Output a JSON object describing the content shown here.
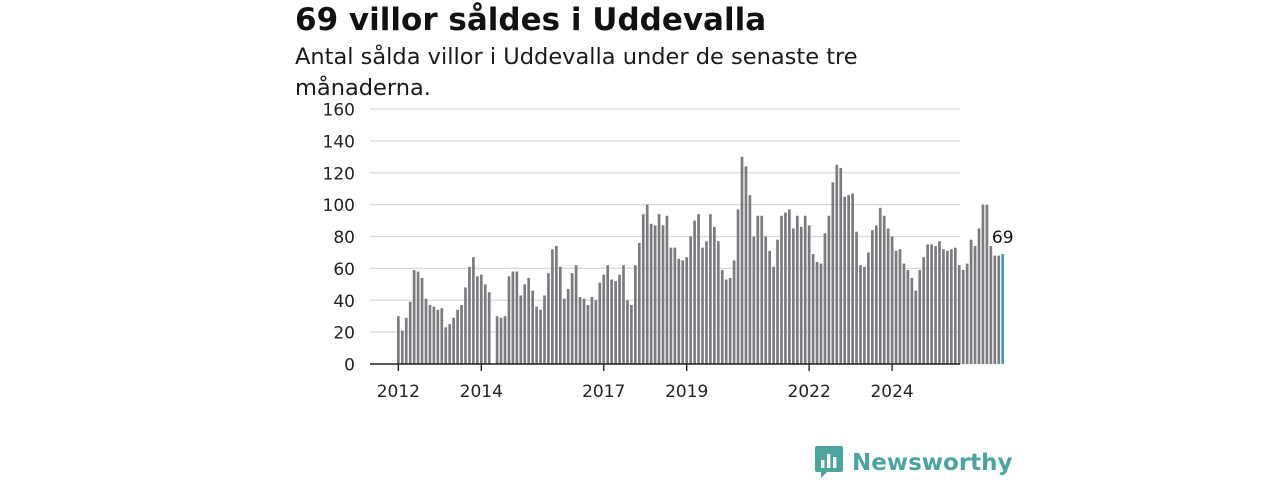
{
  "header": {
    "title": "69 villor såldes i Uddevalla",
    "subtitle": "Antal sålda villor i Uddevalla under de senaste tre månaderna."
  },
  "brand": {
    "name": "Newsworthy",
    "color": "#4aa59f",
    "icon": "newsworthy-logo-icon"
  },
  "colors": {
    "bar": "#7b7b80",
    "highlight": "#3aa7a3",
    "grid": "#d9d9d9",
    "axis": "#222222"
  },
  "chart_data": {
    "type": "bar",
    "title": "69 villor såldes i Uddevalla",
    "subtitle": "Antal sålda villor i Uddevalla under de senaste tre månaderna.",
    "ylim": [
      0,
      160
    ],
    "yticks": [
      0,
      20,
      40,
      60,
      80,
      100,
      120,
      140,
      160
    ],
    "xticks": [
      "2012",
      "2014",
      "2017",
      "2019",
      "2022",
      "2024"
    ],
    "grid": true,
    "start_label": "2012",
    "values": [
      30,
      21,
      29,
      39,
      59,
      58,
      54,
      41,
      37,
      36,
      34,
      35,
      23,
      25,
      29,
      34,
      37,
      48,
      61,
      67,
      55,
      56,
      50,
      45,
      null,
      30,
      29,
      30,
      55,
      58,
      58,
      43,
      50,
      54,
      46,
      36,
      34,
      43,
      57,
      72,
      74,
      61,
      41,
      47,
      57,
      62,
      42,
      41,
      37,
      42,
      40,
      51,
      56,
      62,
      53,
      52,
      56,
      62,
      40,
      37,
      62,
      76,
      94,
      100,
      88,
      87,
      94,
      87,
      93,
      73,
      73,
      66,
      65,
      67,
      80,
      90,
      94,
      73,
      77,
      94,
      86,
      77,
      59,
      53,
      54,
      65,
      97,
      130,
      124,
      106,
      80,
      93,
      93,
      80,
      71,
      61,
      78,
      93,
      95,
      97,
      85,
      93,
      86,
      93,
      87,
      69,
      64,
      63,
      82,
      93,
      114,
      125,
      123,
      105,
      106,
      107,
      83,
      62,
      61,
      70,
      84,
      87,
      98,
      93,
      85,
      80,
      71,
      72,
      63,
      59,
      54,
      46,
      59,
      67,
      75,
      75,
      74,
      77,
      72,
      71,
      72,
      73,
      62,
      59,
      63,
      78,
      74,
      85,
      100,
      100,
      74,
      68,
      68,
      69
    ],
    "highlight_last": 1,
    "annotation": "69"
  }
}
